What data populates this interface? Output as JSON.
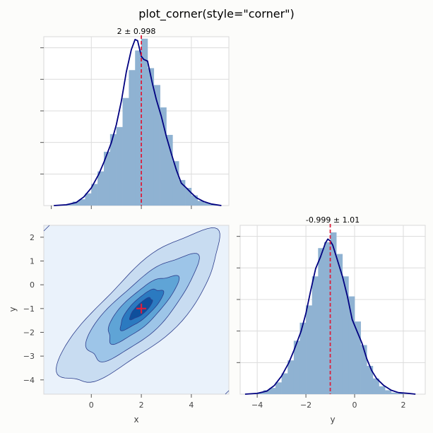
{
  "chart_data": [
    {
      "type": "bar",
      "panel": "x-marginal",
      "title": "2 ± 0.998",
      "xlim": [
        -1.9,
        5.5
      ],
      "ylim": [
        0,
        0.43
      ],
      "x_ticks": [
        0,
        2,
        4
      ],
      "bin_edges": [
        -1.5,
        -1.25,
        -1.0,
        -0.75,
        -0.5,
        -0.25,
        0.0,
        0.25,
        0.5,
        0.75,
        1.0,
        1.25,
        1.5,
        1.75,
        2.0,
        2.25,
        2.5,
        2.75,
        3.0,
        3.25,
        3.5,
        3.75,
        4.0,
        4.25,
        4.5,
        4.75,
        5.0,
        5.25
      ],
      "bar_heights": [
        0.0,
        0.002,
        0.004,
        0.01,
        0.016,
        0.031,
        0.055,
        0.087,
        0.137,
        0.182,
        0.2,
        0.274,
        0.345,
        0.395,
        0.425,
        0.35,
        0.307,
        0.25,
        0.18,
        0.113,
        0.065,
        0.045,
        0.026,
        0.012,
        0.007,
        0.003,
        0.0
      ],
      "kde_x": [
        -1.5,
        -1.0,
        -0.6,
        -0.3,
        0.0,
        0.3,
        0.5,
        0.8,
        1.0,
        1.2,
        1.4,
        1.6,
        1.75,
        1.85,
        2.0,
        2.1,
        2.25,
        2.45,
        2.6,
        2.8,
        3.0,
        3.2,
        3.4,
        3.6,
        3.8,
        4.0,
        4.2,
        4.5,
        4.8,
        5.2
      ],
      "kde_y": [
        0.0,
        0.002,
        0.008,
        0.022,
        0.045,
        0.08,
        0.11,
        0.16,
        0.206,
        0.266,
        0.34,
        0.397,
        0.423,
        0.42,
        0.38,
        0.372,
        0.368,
        0.309,
        0.27,
        0.227,
        0.176,
        0.132,
        0.091,
        0.057,
        0.045,
        0.032,
        0.02,
        0.01,
        0.004,
        0.0
      ],
      "truth": 2
    },
    {
      "type": "contour",
      "panel": "x-y-joint",
      "xlabel": "x",
      "ylabel": "y",
      "xlim": [
        -1.9,
        5.5
      ],
      "ylim": [
        -4.6,
        2.5
      ],
      "x_ticks": [
        0,
        2,
        4
      ],
      "y_ticks": [
        -4,
        -3,
        -2,
        -1,
        0,
        1,
        2
      ],
      "center": [
        2,
        -1
      ],
      "sd": [
        1,
        1
      ],
      "correlation": 0.8,
      "levels": [
        3.2,
        2.2,
        1.4,
        0.85,
        0.45
      ],
      "truth": [
        2,
        -1
      ]
    },
    {
      "type": "bar",
      "panel": "y-marginal",
      "title": "-0.999 ± 1.01",
      "xlabel": "y",
      "xlim": [
        -4.7,
        2.9
      ],
      "ylim": [
        0,
        0.43
      ],
      "x_ticks": [
        -4,
        -2,
        0,
        2
      ],
      "bin_edges": [
        -4.5,
        -4.25,
        -4.0,
        -3.75,
        -3.5,
        -3.25,
        -3.0,
        -2.75,
        -2.5,
        -2.25,
        -2.0,
        -1.75,
        -1.5,
        -1.25,
        -1.0,
        -0.75,
        -0.5,
        -0.25,
        0.0,
        0.25,
        0.5,
        0.75,
        1.0,
        1.25,
        1.5,
        1.75,
        2.0,
        2.25
      ],
      "bar_heights": [
        0.0,
        0.002,
        0.004,
        0.01,
        0.016,
        0.03,
        0.053,
        0.086,
        0.136,
        0.182,
        0.226,
        0.3,
        0.372,
        0.387,
        0.412,
        0.357,
        0.3,
        0.249,
        0.185,
        0.125,
        0.072,
        0.04,
        0.02,
        0.01,
        0.004,
        0.002,
        0.0
      ],
      "kde_x": [
        -4.5,
        -4.0,
        -3.6,
        -3.3,
        -3.0,
        -2.7,
        -2.5,
        -2.2,
        -2.0,
        -1.8,
        -1.6,
        -1.4,
        -1.2,
        -1.1,
        -1.0,
        -0.9,
        -0.7,
        -0.5,
        -0.3,
        -0.1,
        0.1,
        0.3,
        0.5,
        0.7,
        0.9,
        1.2,
        1.5,
        1.8,
        2.2,
        2.5
      ],
      "kde_y": [
        0.0,
        0.002,
        0.008,
        0.022,
        0.046,
        0.08,
        0.11,
        0.16,
        0.206,
        0.265,
        0.32,
        0.35,
        0.385,
        0.395,
        0.39,
        0.38,
        0.34,
        0.3,
        0.25,
        0.19,
        0.16,
        0.13,
        0.09,
        0.06,
        0.04,
        0.022,
        0.01,
        0.004,
        0.002,
        0.0
      ],
      "truth": -1
    }
  ],
  "figure": {
    "title": "plot_corner(style=\"corner\")",
    "colors": {
      "bar": "#8fb2d2",
      "kde": "#000080",
      "truth": "#dc1f3c",
      "contour_bg": "#eaf2fb",
      "contour_fills": [
        "#c8dcf1",
        "#9dc5e8",
        "#5fa4d6",
        "#2b7ac0",
        "#0e4f9c"
      ],
      "contour_line": "#2d3e8c"
    }
  }
}
